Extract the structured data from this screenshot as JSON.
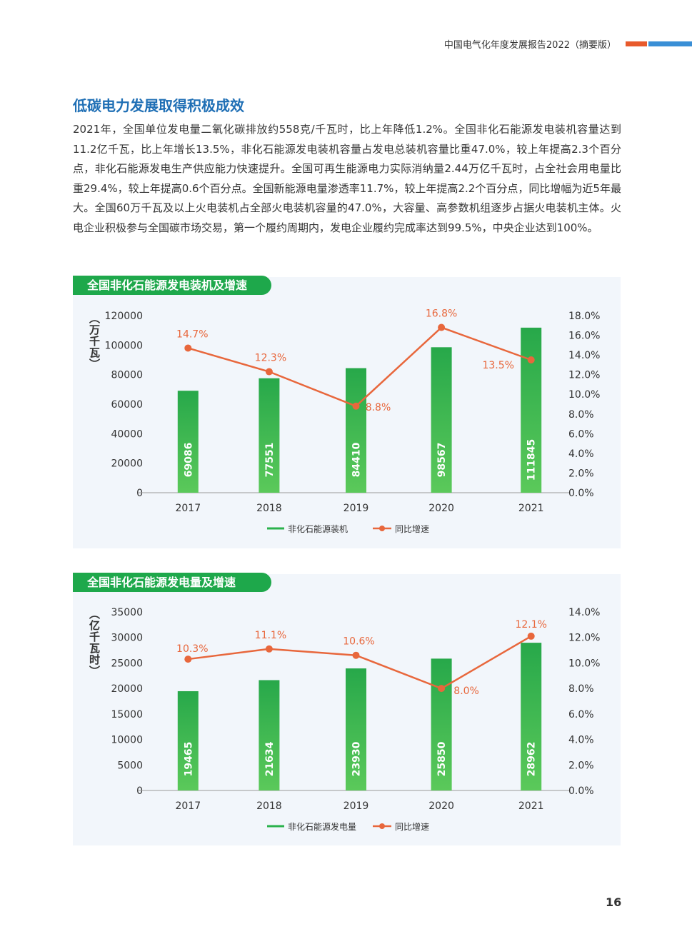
{
  "header": {
    "title": "中国电气化年度发展报告2022（摘要版）",
    "accent_orange": "#e85a2c",
    "accent_blue": "#3a8fd6"
  },
  "section": {
    "title": "低碳电力发展取得积极成效",
    "body": "2021年，全国单位发电量二氧化碳排放约558克/千瓦时，比上年降低1.2%。全国非化石能源发电装机容量达到11.2亿千瓦，比上年增长13.5%，非化石能源发电装机容量占发电总装机容量比重47.0%，较上年提高2.3个百分点，非化石能源发电生产供应能力快速提升。全国可再生能源电力实际消纳量2.44万亿千瓦时，占全社会用电量比重29.4%，较上年提高0.6个百分点。全国新能源电量渗透率11.7%，较上年提高2.2个百分点，同比增幅为近5年最大。全国60万千瓦及以上火电装机占全部火电装机容量的47.0%，大容量、高参数机组逐步占据火电装机主体。火电企业积极参与全国碳市场交易，第一个履约周期内，发电企业履约完成率达到99.5%，中央企业达到100%。"
  },
  "page_number": "16",
  "chart_data": [
    {
      "type": "bar",
      "title": "全国非化石能源发电装机及增速",
      "categories": [
        "2017",
        "2018",
        "2019",
        "2020",
        "2021"
      ],
      "series": [
        {
          "name": "非化石能源装机",
          "type": "bar",
          "values": [
            69086,
            77551,
            84410,
            98567,
            111845
          ],
          "color": "#2bb24c"
        },
        {
          "name": "同比增速",
          "type": "line",
          "axis": "right",
          "values": [
            14.7,
            12.3,
            8.8,
            16.8,
            13.5
          ],
          "labels": [
            "14.7%",
            "12.3%",
            "8.8%",
            "16.8%",
            "13.5%"
          ],
          "color": "#e8673c"
        }
      ],
      "ylabel": "（万千瓦）",
      "ylim": [
        0,
        120000
      ],
      "yticks": [
        "0",
        "20000",
        "40000",
        "60000",
        "80000",
        "100000",
        "120000"
      ],
      "y2lim": [
        0,
        18
      ],
      "y2ticks": [
        "0.0%",
        "2.0%",
        "4.0%",
        "6.0%",
        "8.0%",
        "10.0%",
        "12.0%",
        "14.0%",
        "16.0%",
        "18.0%"
      ],
      "legend_position": "bottom"
    },
    {
      "type": "bar",
      "title": "全国非化石能源发电量及增速",
      "categories": [
        "2017",
        "2018",
        "2019",
        "2020",
        "2021"
      ],
      "series": [
        {
          "name": "非化石能源发电量",
          "type": "bar",
          "values": [
            19465,
            21634,
            23930,
            25850,
            28962
          ],
          "color": "#2bb24c"
        },
        {
          "name": "同比增速",
          "type": "line",
          "axis": "right",
          "values": [
            10.3,
            11.1,
            10.6,
            8.0,
            12.1
          ],
          "labels": [
            "10.3%",
            "11.1%",
            "10.6%",
            "8.0%",
            "12.1%"
          ],
          "color": "#e8673c"
        }
      ],
      "ylabel": "（亿千瓦时）",
      "ylim": [
        0,
        35000
      ],
      "yticks": [
        "0",
        "5000",
        "10000",
        "15000",
        "20000",
        "25000",
        "30000",
        "35000"
      ],
      "y2lim": [
        0,
        14
      ],
      "y2ticks": [
        "0.0%",
        "2.0%",
        "4.0%",
        "6.0%",
        "8.0%",
        "10.0%",
        "12.0%",
        "14.0%"
      ],
      "legend_position": "bottom"
    }
  ]
}
